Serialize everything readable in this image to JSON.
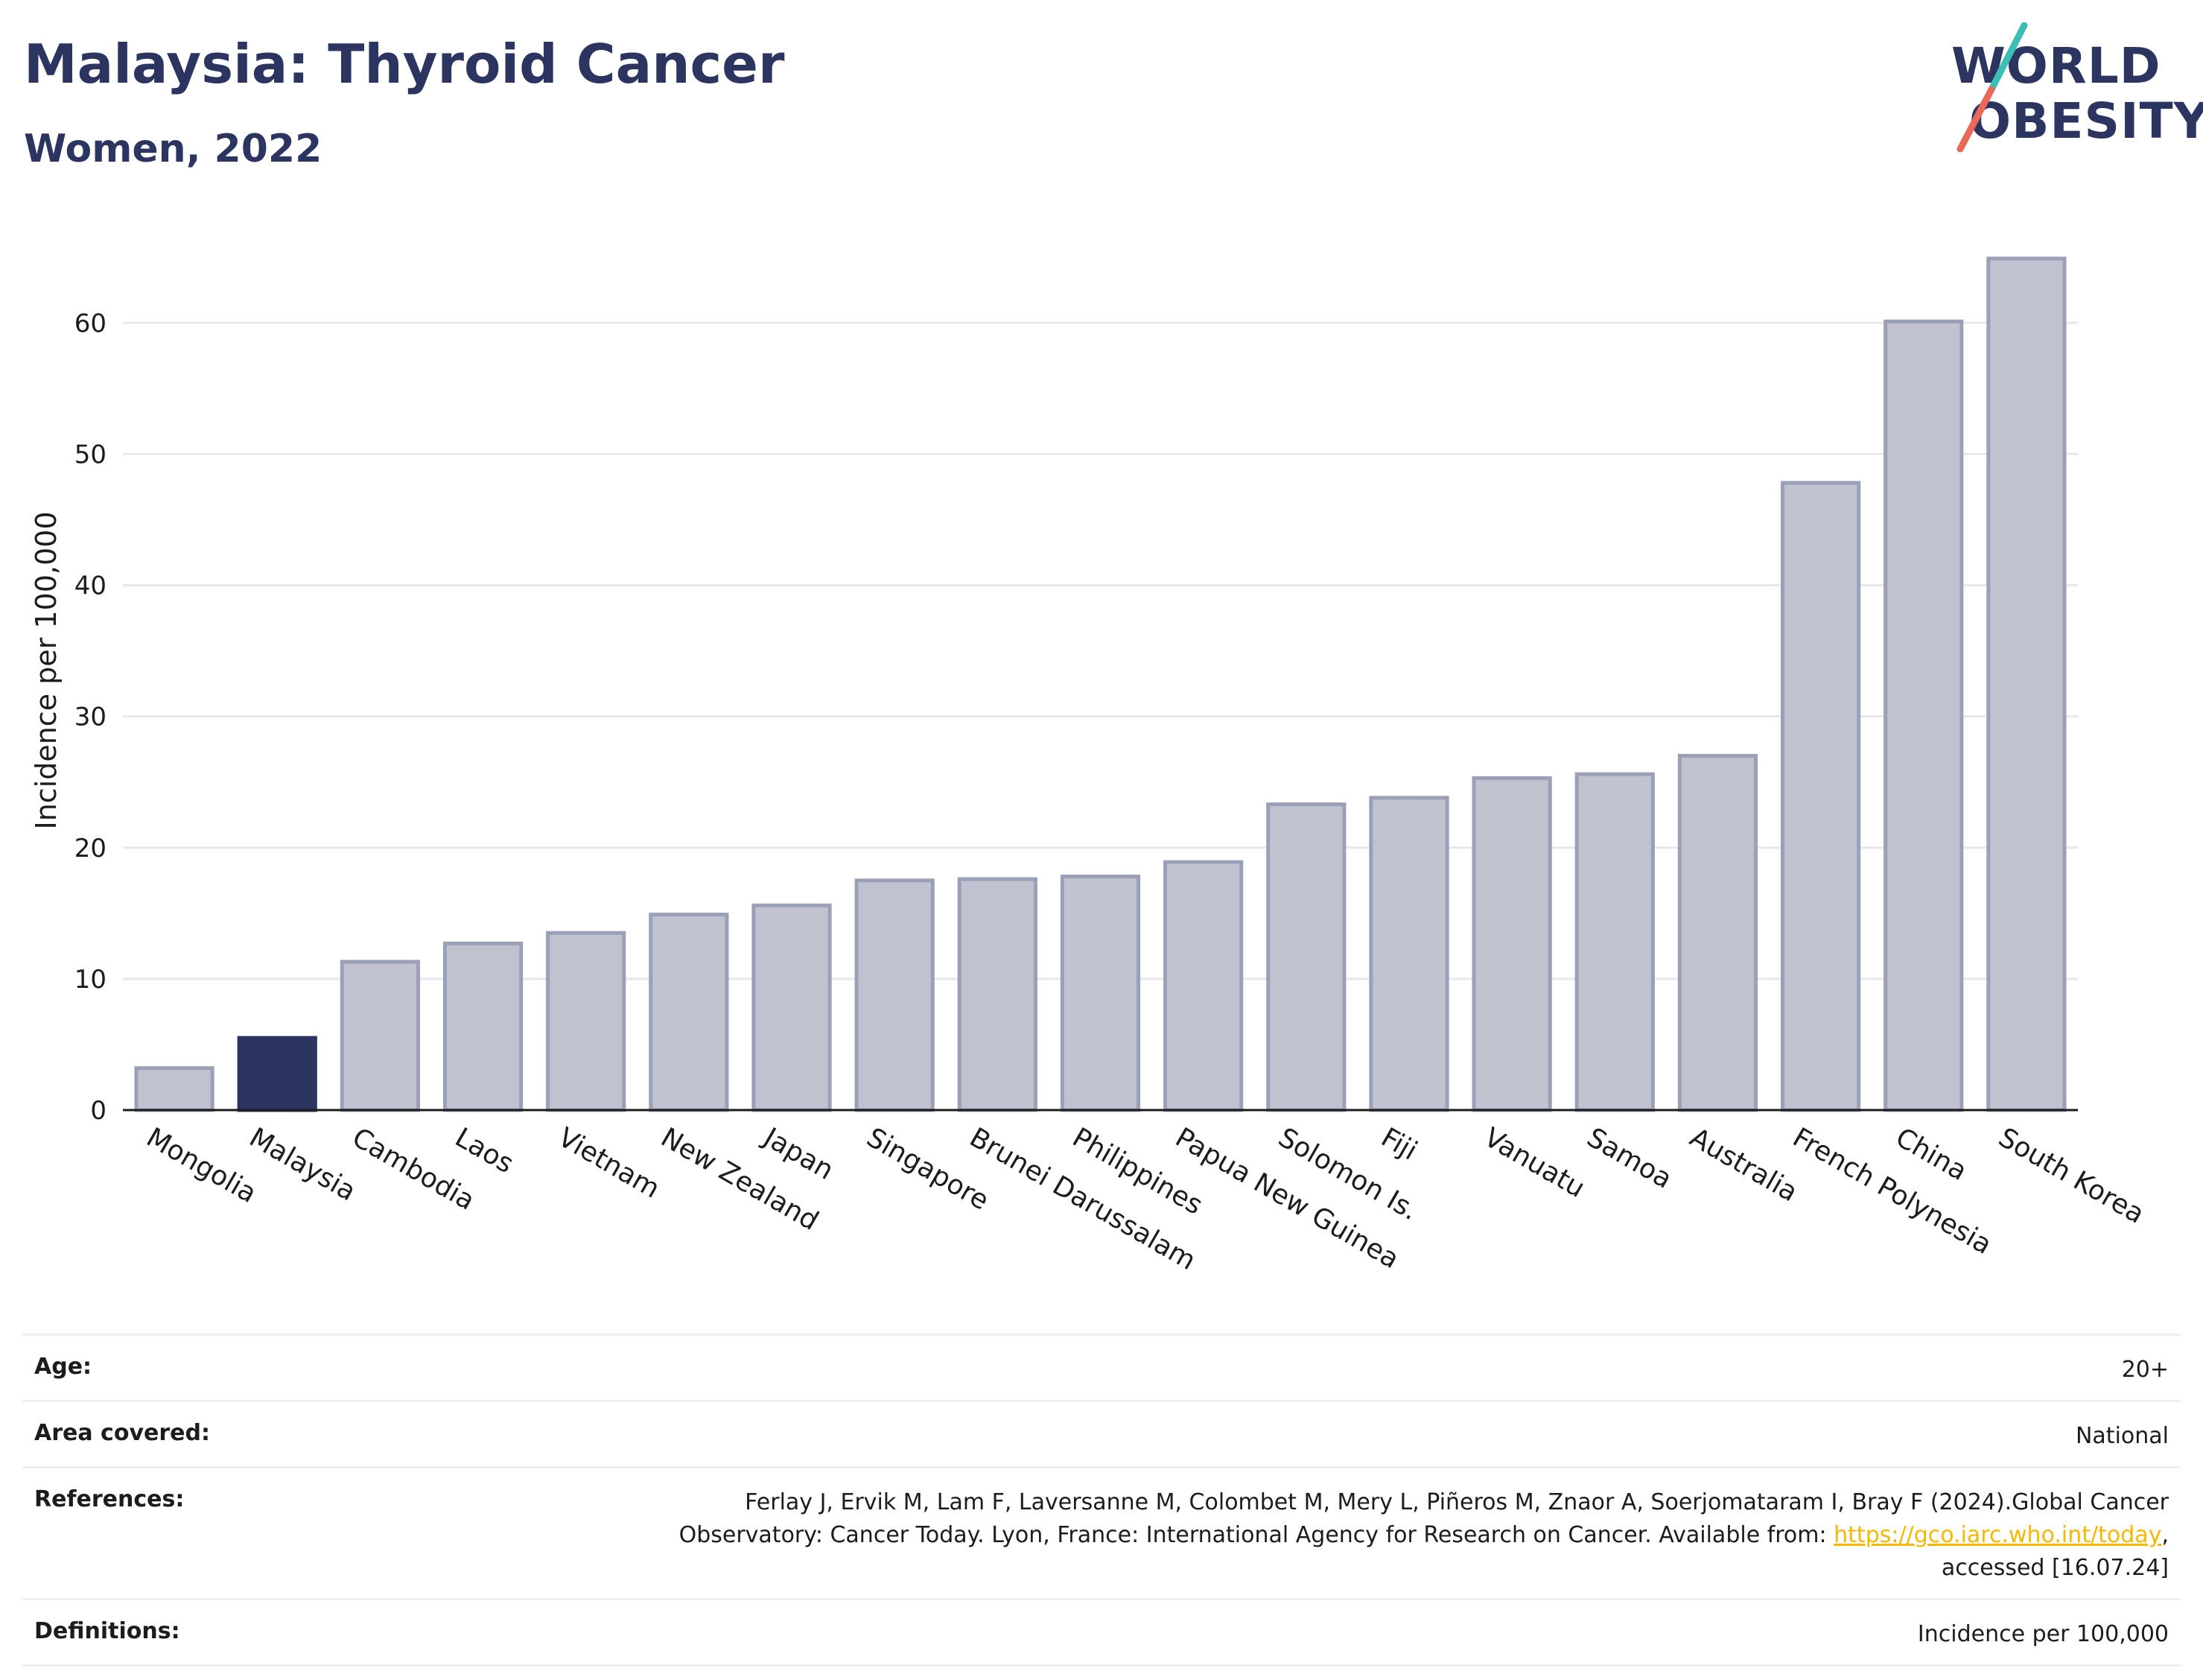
{
  "header": {
    "title": "Malaysia: Thyroid Cancer",
    "subtitle": "Women, 2022"
  },
  "logo": {
    "line1": "WORLD",
    "line2": "OBESITY",
    "slash_colors": [
      "#3bbfb5",
      "#e8685a"
    ],
    "text_color": "#2b3560"
  },
  "chart_data": {
    "type": "bar",
    "title": "Malaysia: Thyroid Cancer",
    "subtitle": "Women, 2022",
    "xlabel": "",
    "ylabel": "Incidence per 100,000",
    "ylim": [
      0,
      67
    ],
    "yticks": [
      0,
      10,
      20,
      30,
      40,
      50,
      60
    ],
    "grid": true,
    "categories": [
      "Mongolia",
      "Malaysia",
      "Cambodia",
      "Laos",
      "Vietnam",
      "New Zealand",
      "Japan",
      "Singapore",
      "Brunei Darussalam",
      "Philippines",
      "Papua New Guinea",
      "Solomon Is.",
      "Fiji",
      "Vanuatu",
      "Samoa",
      "Australia",
      "French Polynesia",
      "China",
      "South Korea"
    ],
    "values": [
      3.2,
      5.5,
      11.3,
      12.7,
      13.5,
      14.9,
      15.6,
      17.5,
      17.6,
      17.8,
      18.9,
      23.3,
      23.8,
      25.3,
      25.6,
      27.0,
      47.8,
      60.1,
      64.9
    ],
    "highlight": "Malaysia",
    "colors": {
      "bar": "#c0c3cf",
      "bar_border": "#9aa0b8",
      "highlight": "#2b3560",
      "grid": "#e6e8ee",
      "axis": "#1c1c1c"
    }
  },
  "info": [
    {
      "label": "Age:",
      "value": "20+"
    },
    {
      "label": "Area covered:",
      "value": "National"
    },
    {
      "label": "References:",
      "value_line1": "Ferlay J, Ervik M, Lam F, Laversanne M, Colombet M, Mery L, Piñeros M, Znaor A, Soerjomataram I, Bray F (2024).Global Cancer",
      "value_line2_pre": "Observatory: Cancer Today. Lyon, France: International Agency for Research on Cancer. Available from: ",
      "link": "https://gco.iarc.who.int/today",
      "value_line2_post": ",",
      "value_line3": "accessed [16.07.24]"
    },
    {
      "label": "Definitions:",
      "value": "Incidence per 100,000"
    }
  ]
}
